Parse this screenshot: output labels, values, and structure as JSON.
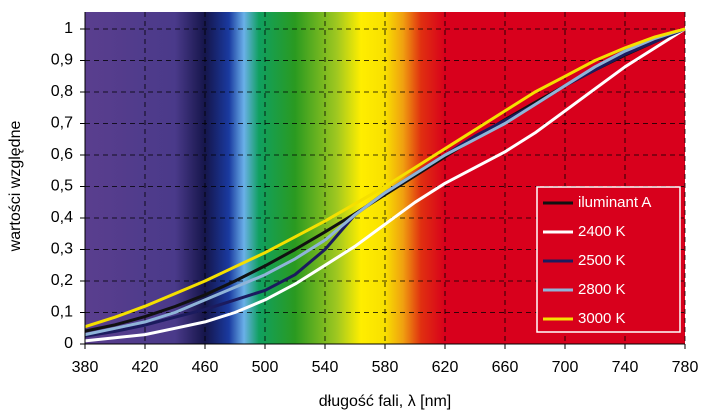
{
  "chart_data": {
    "type": "line",
    "x_label": "długość fali,  λ [nm]",
    "y_label": "wartości względne",
    "x": [
      380,
      400,
      420,
      440,
      460,
      480,
      500,
      520,
      540,
      560,
      580,
      600,
      620,
      640,
      660,
      680,
      700,
      720,
      740,
      760,
      780
    ],
    "series": [
      {
        "name": "iluminant A",
        "color": "#111111",
        "values": [
          0.041,
          0.061,
          0.087,
          0.119,
          0.156,
          0.2,
          0.248,
          0.3,
          0.356,
          0.414,
          0.474,
          0.534,
          0.594,
          0.654,
          0.712,
          0.767,
          0.82,
          0.87,
          0.917,
          0.96,
          1.0
        ]
      },
      {
        "name": "2400 K",
        "color": "#ffffff",
        "values": [
          0.01,
          0.02,
          0.03,
          0.05,
          0.07,
          0.1,
          0.14,
          0.19,
          0.25,
          0.31,
          0.38,
          0.45,
          0.51,
          0.56,
          0.61,
          0.67,
          0.74,
          0.81,
          0.88,
          0.94,
          1.0
        ]
      },
      {
        "name": "2500 K",
        "color": "#1b1b5e",
        "values": [
          0.025,
          0.04,
          0.06,
          0.085,
          0.11,
          0.14,
          0.17,
          0.22,
          0.3,
          0.41,
          0.48,
          0.54,
          0.6,
          0.66,
          0.71,
          0.76,
          0.82,
          0.87,
          0.92,
          0.96,
          1.0
        ]
      },
      {
        "name": "2800 K",
        "color": "#8fb4d8",
        "values": [
          0.03,
          0.05,
          0.07,
          0.1,
          0.14,
          0.18,
          0.22,
          0.27,
          0.33,
          0.41,
          0.48,
          0.54,
          0.6,
          0.65,
          0.7,
          0.76,
          0.82,
          0.88,
          0.93,
          0.97,
          1.0
        ]
      },
      {
        "name": "3000 K",
        "color": "#f5e000",
        "values": [
          0.055,
          0.085,
          0.12,
          0.16,
          0.2,
          0.245,
          0.29,
          0.34,
          0.39,
          0.445,
          0.5,
          0.56,
          0.62,
          0.68,
          0.74,
          0.8,
          0.85,
          0.9,
          0.94,
          0.975,
          1.0
        ]
      }
    ],
    "xlim": [
      380,
      780
    ],
    "xticks": [
      380,
      420,
      460,
      500,
      540,
      580,
      620,
      660,
      700,
      740,
      780
    ],
    "ylim": [
      0,
      1
    ],
    "yticks": [
      0,
      {
        "value": 0.1,
        "label": "0,1"
      },
      {
        "value": 0.2,
        "label": "0,2"
      },
      {
        "value": 0.3,
        "label": "0,3"
      },
      {
        "value": 0.4,
        "label": "0,4"
      },
      {
        "value": 0.5,
        "label": "0,5"
      },
      {
        "value": 0.6,
        "label": "0,6"
      },
      {
        "value": 0.7,
        "label": "0,7"
      },
      {
        "value": 0.8,
        "label": "0,8"
      },
      {
        "value": 0.9,
        "label": "0,9"
      },
      1
    ],
    "grid": true
  }
}
